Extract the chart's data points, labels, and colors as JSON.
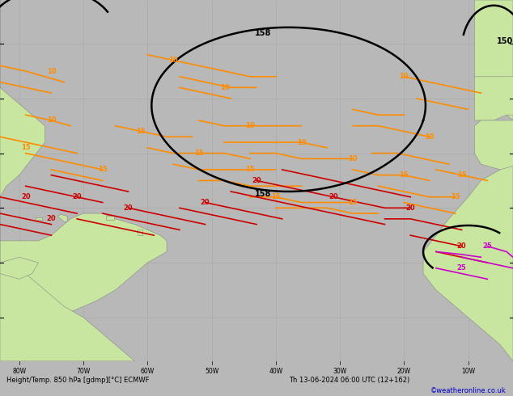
{
  "title_left": "Height/Temp. 850 hPa [gdmp][°C] ECMWF",
  "title_right": "Th 13-06-2024 06:00 UTC (12+162)",
  "credit": "©weatheronline.co.uk",
  "land_color": "#c8e6a0",
  "sea_color": "#e0e0e0",
  "grid_color": "#aaaaaa",
  "contour_black_color": "#000000",
  "contour_orange_color": "#ff8c00",
  "contour_red_color": "#cc0000",
  "contour_magenta_color": "#cc00cc",
  "bottom_bar_color": "#b8b8b8",
  "text_color": "#000000",
  "credit_color": "#0000cc",
  "lon_min": -83,
  "lon_max": -3,
  "lat_min": -8,
  "lat_max": 58
}
